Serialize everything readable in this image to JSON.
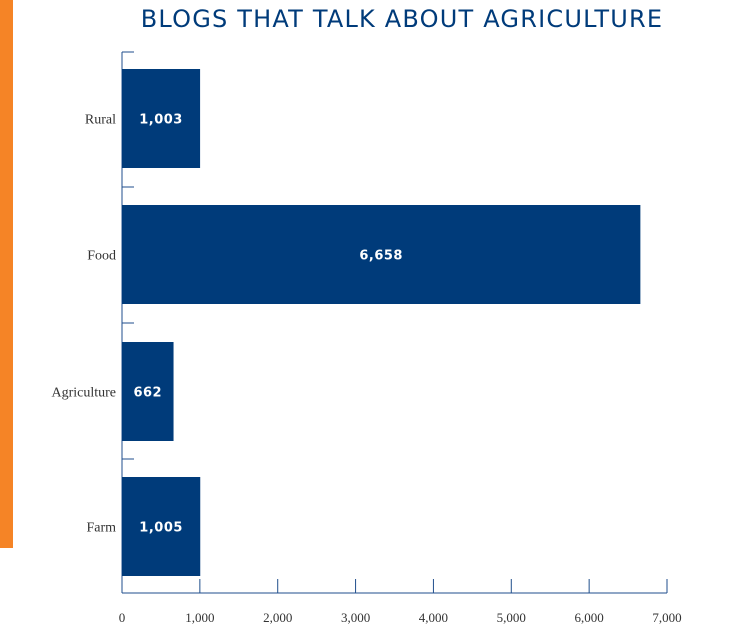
{
  "colors": {
    "bar": "#003b7a",
    "axis": "#1f4e8c",
    "strip": "#f58426"
  },
  "chart_data": {
    "type": "bar",
    "orientation": "horizontal",
    "title": "BLOGS THAT TALK ABOUT AGRICULTURE",
    "xlabel": "",
    "ylabel": "",
    "categories": [
      "Rural",
      "Food",
      "Agriculture",
      "Farm"
    ],
    "values": [
      1003,
      6658,
      662,
      1005
    ],
    "value_labels": [
      "1,003",
      "6,658",
      "662",
      "1,005"
    ],
    "xlim": [
      0,
      7000
    ],
    "xticks": [
      0,
      1000,
      2000,
      3000,
      4000,
      5000,
      6000,
      7000
    ],
    "xtick_labels": [
      "0",
      "1,000",
      "2,000",
      "3,000",
      "4,000",
      "5,000",
      "6,000",
      "7,000"
    ],
    "grid": false,
    "legend": "none"
  }
}
